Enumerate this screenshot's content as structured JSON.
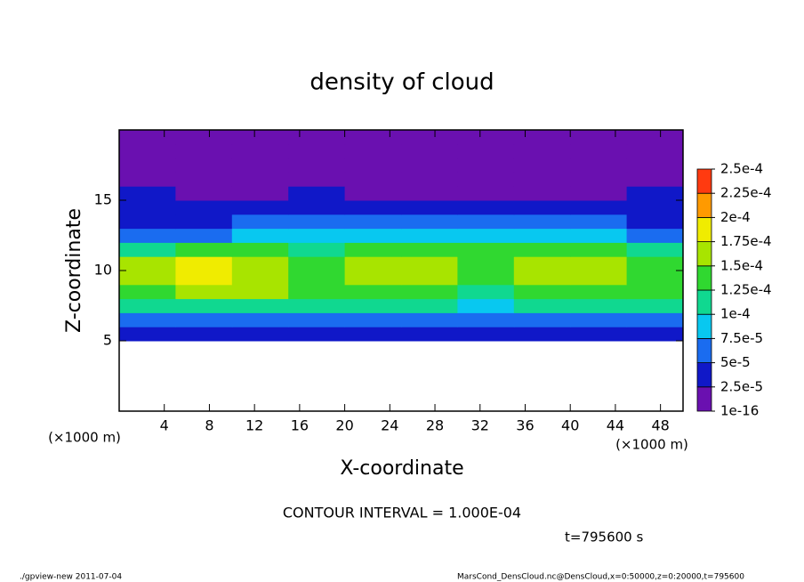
{
  "chart_data": {
    "type": "heatmap",
    "title": "density of cloud",
    "x_label": "X-coordinate",
    "y_label": "Z-coordinate",
    "x_unit": "(×1000 m)",
    "y_unit": "(×1000 m)",
    "xlim": [
      0,
      50
    ],
    "xticks": [
      4,
      8,
      12,
      16,
      20,
      24,
      28,
      32,
      36,
      40,
      44,
      48
    ],
    "ylim": [
      0,
      20
    ],
    "yticks": [
      5,
      10,
      15
    ],
    "x": [
      2.5,
      7.5,
      12.5,
      17.5,
      22.5,
      27.5,
      32.5,
      37.5,
      42.5,
      47.5
    ],
    "y": [
      5.5,
      6.5,
      7.5,
      8.5,
      9.5,
      10.5,
      11.5,
      12.5,
      13.5,
      14.5,
      15.5,
      16.5,
      17.5,
      18.5,
      19.5
    ],
    "z": [
      [
        3e-05,
        3e-05,
        3e-05,
        3e-05,
        3e-05,
        3e-05,
        3e-05,
        3e-05,
        3e-05,
        3e-05
      ],
      [
        6.5e-05,
        6.5e-05,
        6.5e-05,
        6.5e-05,
        6.5e-05,
        6.5e-05,
        6e-05,
        6.5e-05,
        6.5e-05,
        6.5e-05
      ],
      [
        0.00011,
        0.00012,
        0.00011,
        0.000105,
        0.00011,
        0.00011,
        9e-05,
        0.00011,
        0.000105,
        0.000105
      ],
      [
        0.00014,
        0.00016,
        0.00015,
        0.00013,
        0.00014,
        0.00014,
        0.00011,
        0.00014,
        0.00013,
        0.00013
      ],
      [
        0.000155,
        0.000175,
        0.00017,
        0.00014,
        0.000155,
        0.000155,
        0.00013,
        0.000155,
        0.00015,
        0.00014
      ],
      [
        0.00015,
        0.00018,
        0.000165,
        0.00014,
        0.000155,
        0.00015,
        0.00014,
        0.000155,
        0.00015,
        0.00014
      ],
      [
        0.00011,
        0.00014,
        0.00013,
        0.00012,
        0.00013,
        0.00013,
        0.000125,
        0.00013,
        0.000125,
        0.00011
      ],
      [
        6e-05,
        7e-05,
        8e-05,
        8e-05,
        9e-05,
        9e-05,
        9e-05,
        9e-05,
        8e-05,
        7e-05
      ],
      [
        4e-05,
        4.5e-05,
        5e-05,
        5e-05,
        5.5e-05,
        5.5e-05,
        5.5e-05,
        5.5e-05,
        5e-05,
        4.5e-05
      ],
      [
        3e-05,
        3e-05,
        3e-05,
        3e-05,
        3.5e-05,
        3.5e-05,
        3e-05,
        3e-05,
        3e-05,
        3e-05
      ],
      [
        2.7e-05,
        2e-05,
        2e-05,
        2.6e-05,
        2e-05,
        2e-05,
        2e-05,
        2e-05,
        2e-05,
        2.6e-05
      ],
      [
        1e-05,
        1e-05,
        1e-05,
        1e-05,
        1e-05,
        1e-05,
        1e-05,
        1e-05,
        1e-05,
        1e-05
      ],
      [
        1e-05,
        1e-05,
        1e-05,
        1e-05,
        1e-05,
        1e-05,
        1e-05,
        1e-05,
        1e-05,
        1e-05
      ],
      [
        1e-05,
        1e-05,
        1e-05,
        1e-05,
        1e-05,
        1e-05,
        1e-05,
        1e-05,
        1e-05,
        1e-05
      ],
      [
        1e-05,
        1e-05,
        1e-05,
        1e-05,
        1e-05,
        1e-05,
        1e-05,
        1e-05,
        1e-05,
        1e-05
      ]
    ],
    "colorbar_ticks": [
      {
        "value": 1e-16,
        "label": "1e-16"
      },
      {
        "value": 2.5e-05,
        "label": "2.5e-5"
      },
      {
        "value": 5e-05,
        "label": "5e-5"
      },
      {
        "value": 7.5e-05,
        "label": "7.5e-5"
      },
      {
        "value": 0.0001,
        "label": "1e-4"
      },
      {
        "value": 0.000125,
        "label": "1.25e-4"
      },
      {
        "value": 0.00015,
        "label": "1.5e-4"
      },
      {
        "value": 0.000175,
        "label": "1.75e-4"
      },
      {
        "value": 0.0002,
        "label": "2e-4"
      },
      {
        "value": 0.000225,
        "label": "2.25e-4"
      },
      {
        "value": 0.00025,
        "label": "2.5e-4"
      }
    ],
    "colors": [
      "#6a10b0",
      "#1018c8",
      "#1a6cf0",
      "#08c8f0",
      "#10d890",
      "#30d830",
      "#a8e400",
      "#f0ec00",
      "#ff9a00",
      "#ff3a10"
    ],
    "contour_note": "CONTOUR INTERVAL = 1.000E-04",
    "time_label": "t=795600 s",
    "footer_left": "./gpview-new   2011-07-04",
    "footer_right": "MarsCond_DensCloud.nc@DensCloud,x=0:50000,z=0:20000,t=795600"
  }
}
